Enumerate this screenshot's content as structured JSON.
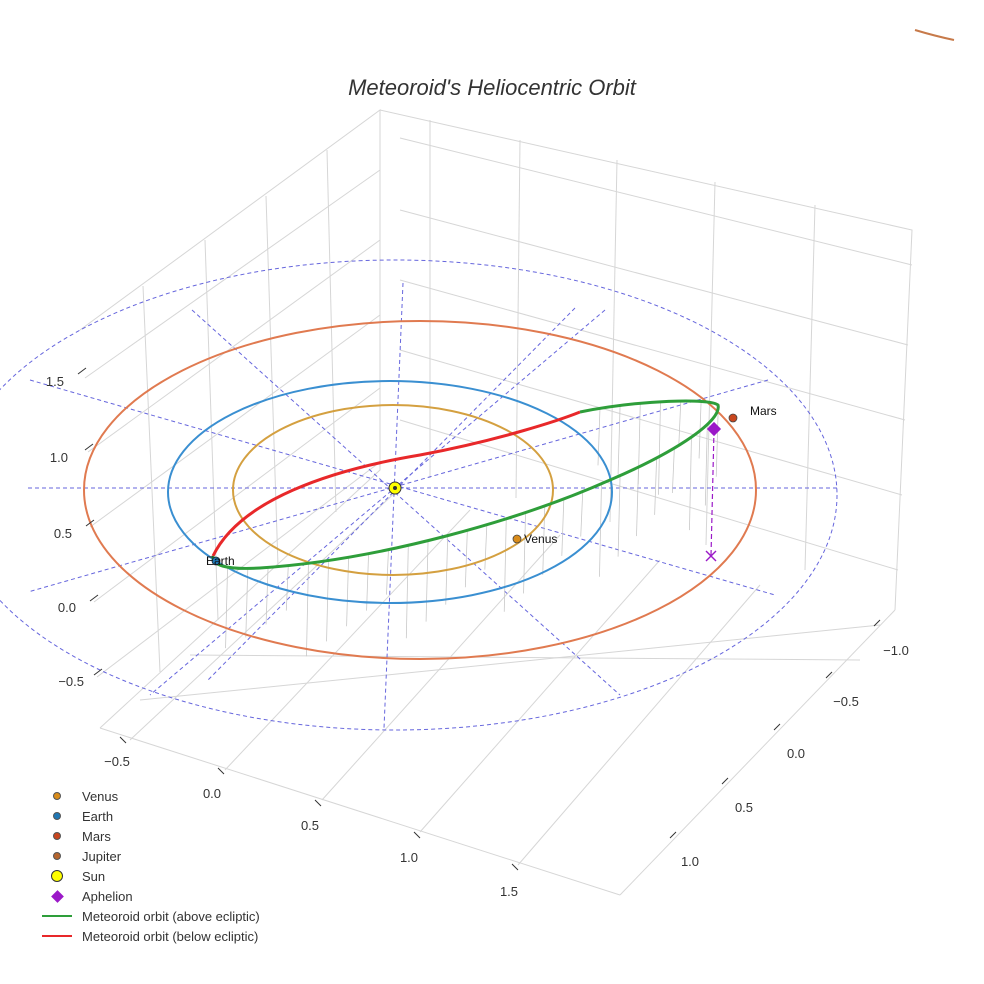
{
  "chart_data": {
    "type": "line",
    "projection": "3d",
    "title": "Meteoroid's Heliocentric Orbit",
    "axes": {
      "x_ticks": [
        "−0.5",
        "0.0",
        "0.5",
        "1.0",
        "1.5"
      ],
      "y_ticks": [
        "−1.0",
        "−0.5",
        "0.0",
        "0.5",
        "1.0"
      ],
      "z_ticks": [
        "1.5",
        "1.0",
        "0.5",
        "0.0",
        "−0.5"
      ],
      "z_range": [
        -0.8,
        1.7
      ]
    },
    "planets": [
      {
        "name": "Venus",
        "orbit_radius_au": 0.72,
        "orbit_color": "#d4a040",
        "marker_color": "#d98c1a",
        "label": "Venus"
      },
      {
        "name": "Earth",
        "orbit_radius_au": 1.0,
        "orbit_color": "#3a8fd1",
        "marker_color": "#1f77b4",
        "label": "Earth"
      },
      {
        "name": "Mars",
        "orbit_radius_au": 1.52,
        "orbit_color": "#e07a50",
        "marker_color": "#c8461e",
        "label": "Mars"
      },
      {
        "name": "Jupiter",
        "orbit_radius_au": 5.2,
        "orbit_color": "#c77a4a",
        "marker_color": "#b5652e",
        "label": ""
      }
    ],
    "sun": {
      "name": "Sun",
      "color": "#ffff00"
    },
    "aphelion": {
      "name": "Aphelion",
      "color": "#9b19c8"
    },
    "meteoroid_orbit": {
      "above_ecliptic": {
        "name": "Meteoroid orbit (above ecliptic)",
        "color": "#2e9e3a"
      },
      "below_ecliptic": {
        "name": "Meteoroid orbit (below ecliptic)",
        "color": "#e8282a"
      }
    },
    "reference_grid": {
      "style": "dashed",
      "color": "#6666dd"
    }
  },
  "legend": {
    "items": [
      {
        "label": "Venus",
        "kind": "dot",
        "color": "#d98c1a"
      },
      {
        "label": "Earth",
        "kind": "dot",
        "color": "#1f77b4"
      },
      {
        "label": "Mars",
        "kind": "dot",
        "color": "#c8461e"
      },
      {
        "label": "Jupiter",
        "kind": "dot",
        "color": "#b5652e"
      },
      {
        "label": "Sun",
        "kind": "sun",
        "color": "#ffff00"
      },
      {
        "label": "Aphelion",
        "kind": "diamond",
        "color": "#9b19c8"
      },
      {
        "label": "Meteoroid orbit (above ecliptic)",
        "kind": "line",
        "color": "#2e9e3a"
      },
      {
        "label": "Meteoroid orbit (below ecliptic)",
        "kind": "line",
        "color": "#e8282a"
      }
    ]
  }
}
